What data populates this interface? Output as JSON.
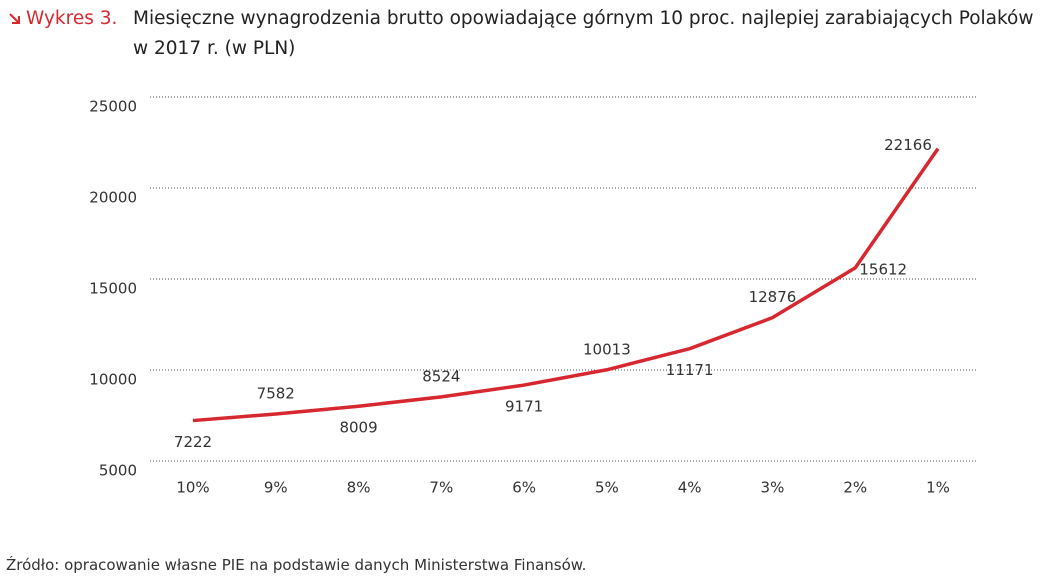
{
  "chart_data": {
    "type": "line",
    "label": "Wykres 3.",
    "title": "Miesięczne wynagrodzenia brutto opowiadające górnym 10 proc. najlepiej zarabiających Polaków w 2017 r. (w PLN)",
    "categories": [
      "10%",
      "9%",
      "8%",
      "7%",
      "6%",
      "5%",
      "4%",
      "3%",
      "2%",
      "1%"
    ],
    "values": [
      7222,
      7582,
      8009,
      8524,
      9171,
      10013,
      11171,
      12876,
      15612,
      22166
    ],
    "color": "#d7282f",
    "ylim": [
      5000,
      25000
    ],
    "yticks": [
      5000,
      10000,
      15000,
      20000,
      25000
    ],
    "grid": true,
    "source": "Źródło: opracowanie własne PIE na podstawie danych Ministerstwa Finansów."
  }
}
